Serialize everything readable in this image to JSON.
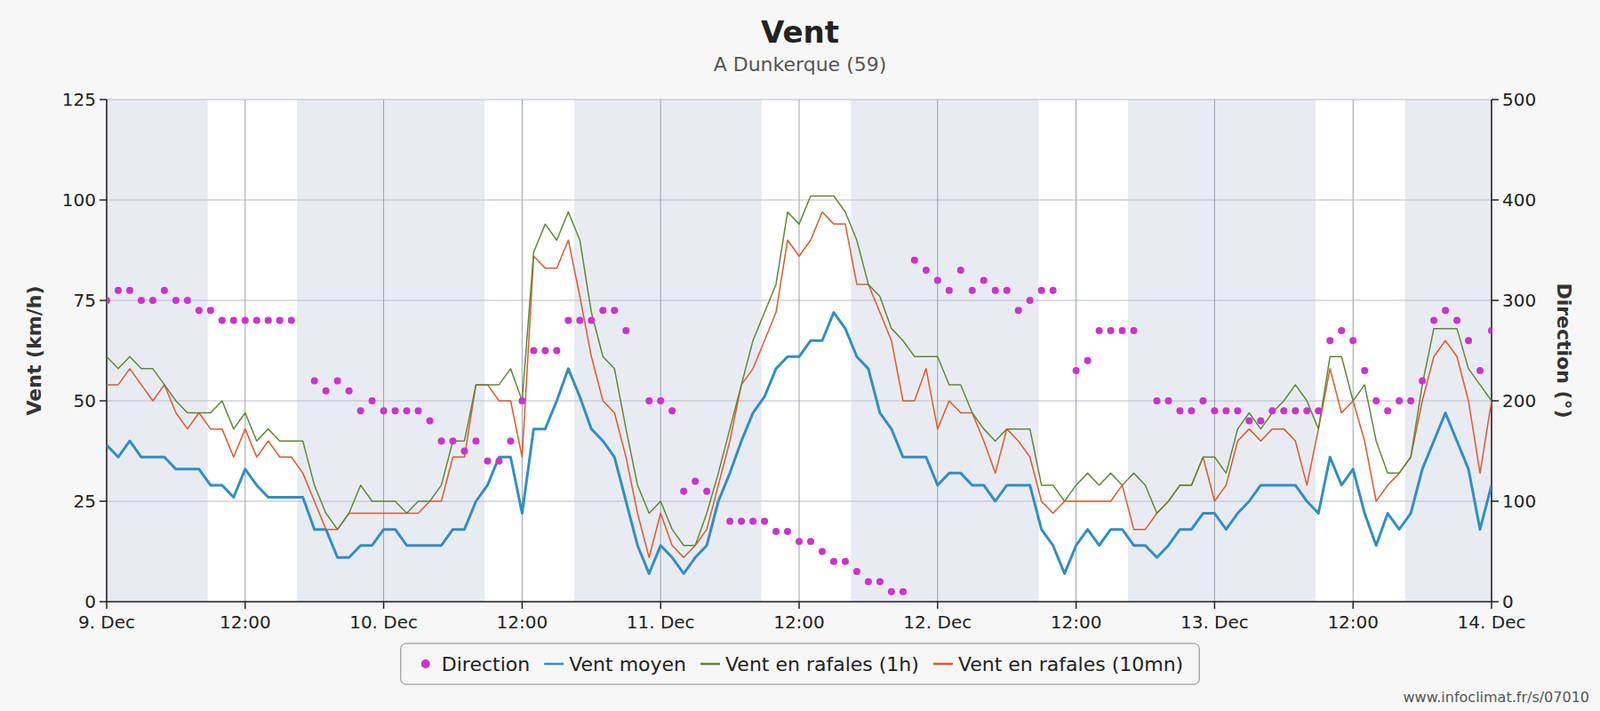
{
  "chart_data": {
    "type": "line",
    "title": "Vent",
    "subtitle": "A Dunkerque (59)",
    "y_label": "Vent (km/h)",
    "y2_label": "Direction (°)",
    "credit": "www.infoclimat.fr/s/07010",
    "xlim": [
      0,
      120
    ],
    "xticks": [
      {
        "value": 0,
        "label": "9. Dec"
      },
      {
        "value": 12,
        "label": "12:00"
      },
      {
        "value": 24,
        "label": "10. Dec"
      },
      {
        "value": 36,
        "label": "12:00"
      },
      {
        "value": 48,
        "label": "11. Dec"
      },
      {
        "value": 60,
        "label": "12:00"
      },
      {
        "value": 72,
        "label": "12. Dec"
      },
      {
        "value": 84,
        "label": "12:00"
      },
      {
        "value": 96,
        "label": "13. Dec"
      },
      {
        "value": 108,
        "label": "12:00"
      },
      {
        "value": 120,
        "label": "14. Dec"
      }
    ],
    "ylim": [
      0,
      125
    ],
    "yticks": [
      0,
      25,
      50,
      75,
      100,
      125
    ],
    "y2lim": [
      0,
      500
    ],
    "y2ticks": [
      0,
      100,
      200,
      300,
      400,
      500
    ],
    "grid": true,
    "legend": "bottom",
    "bands": [
      [
        8.75,
        16.5
      ],
      [
        32.75,
        40.5
      ],
      [
        56.75,
        64.5
      ],
      [
        80.75,
        88.5
      ],
      [
        104.75,
        112.5
      ]
    ],
    "x": [
      0,
      1,
      2,
      3,
      4,
      5,
      6,
      7,
      8,
      9,
      10,
      11,
      12,
      13,
      14,
      15,
      16,
      17,
      18,
      19,
      20,
      21,
      22,
      23,
      24,
      25,
      26,
      27,
      28,
      29,
      30,
      31,
      32,
      33,
      34,
      35,
      36,
      37,
      38,
      39,
      40,
      41,
      42,
      43,
      44,
      45,
      46,
      47,
      48,
      49,
      50,
      51,
      52,
      53,
      54,
      55,
      56,
      57,
      58,
      59,
      60,
      61,
      62,
      63,
      64,
      65,
      66,
      67,
      68,
      69,
      70,
      71,
      72,
      73,
      74,
      75,
      76,
      77,
      78,
      79,
      80,
      81,
      82,
      83,
      84,
      85,
      86,
      87,
      88,
      89,
      90,
      91,
      92,
      93,
      94,
      95,
      96,
      97,
      98,
      99,
      100,
      101,
      102,
      103,
      104,
      105,
      106,
      107,
      108,
      109,
      110,
      111,
      112,
      113,
      114,
      115,
      116,
      117,
      118,
      119,
      120
    ],
    "series": [
      {
        "name": "Direction",
        "type": "scatter",
        "marker": "circle",
        "axis": "y2",
        "color": "#cc33cc",
        "values": [
          300,
          310,
          310,
          300,
          300,
          310,
          300,
          300,
          290,
          290,
          280,
          280,
          280,
          280,
          280,
          280,
          280,
          null,
          220,
          210,
          220,
          210,
          190,
          200,
          190,
          190,
          190,
          190,
          180,
          160,
          160,
          150,
          160,
          140,
          140,
          160,
          200,
          250,
          250,
          250,
          280,
          280,
          280,
          290,
          290,
          270,
          null,
          200,
          200,
          190,
          110,
          120,
          110,
          null,
          80,
          80,
          80,
          80,
          70,
          70,
          60,
          60,
          50,
          40,
          40,
          30,
          20,
          20,
          10,
          10,
          340,
          330,
          320,
          310,
          330,
          310,
          320,
          310,
          310,
          290,
          300,
          310,
          310,
          null,
          230,
          240,
          270,
          270,
          270,
          270,
          null,
          200,
          200,
          190,
          190,
          200,
          190,
          190,
          190,
          180,
          180,
          190,
          190,
          190,
          190,
          190,
          260,
          270,
          260,
          230,
          200,
          190,
          200,
          200,
          220,
          280,
          290,
          280,
          260,
          230,
          270
        ]
      },
      {
        "name": "Vent moyen",
        "type": "line",
        "color": "#2f8fc4",
        "values": [
          39,
          36,
          40,
          36,
          36,
          36,
          33,
          33,
          33,
          29,
          29,
          26,
          33,
          29,
          26,
          26,
          26,
          26,
          18,
          18,
          11,
          11,
          14,
          14,
          18,
          18,
          14,
          14,
          14,
          14,
          18,
          18,
          25,
          29,
          36,
          36,
          22,
          43,
          43,
          50,
          58,
          51,
          43,
          40,
          36,
          25,
          14,
          7,
          14,
          11,
          7,
          11,
          14,
          25,
          32,
          40,
          47,
          51,
          58,
          61,
          61,
          65,
          65,
          72,
          68,
          61,
          58,
          47,
          43,
          36,
          36,
          36,
          29,
          32,
          32,
          29,
          29,
          25,
          29,
          29,
          29,
          18,
          14,
          7,
          14,
          18,
          14,
          18,
          18,
          14,
          14,
          11,
          14,
          18,
          18,
          22,
          22,
          18,
          22,
          25,
          29,
          29,
          29,
          29,
          25,
          22,
          36,
          29,
          33,
          22,
          14,
          22,
          18,
          22,
          33,
          40,
          47,
          40,
          33,
          18,
          29
        ]
      },
      {
        "name": "Vent en rafales (1h)",
        "type": "line",
        "color": "#5d8a35",
        "values": [
          61,
          58,
          61,
          58,
          58,
          54,
          50,
          47,
          47,
          47,
          50,
          43,
          47,
          40,
          43,
          40,
          40,
          40,
          29,
          22,
          18,
          22,
          29,
          25,
          25,
          25,
          22,
          25,
          25,
          29,
          40,
          40,
          54,
          54,
          54,
          58,
          50,
          87,
          94,
          90,
          97,
          90,
          72,
          61,
          58,
          43,
          29,
          22,
          25,
          18,
          14,
          14,
          22,
          32,
          43,
          54,
          65,
          72,
          79,
          97,
          94,
          101,
          101,
          101,
          97,
          90,
          79,
          76,
          68,
          65,
          61,
          61,
          61,
          54,
          54,
          47,
          43,
          40,
          43,
          43,
          43,
          29,
          29,
          25,
          29,
          32,
          29,
          32,
          29,
          32,
          29,
          22,
          25,
          29,
          29,
          36,
          36,
          32,
          43,
          47,
          43,
          47,
          50,
          54,
          50,
          43,
          61,
          61,
          50,
          54,
          40,
          32,
          32,
          36,
          54,
          68,
          68,
          68,
          58,
          54,
          50
        ]
      },
      {
        "name": "Vent en rafales (10mn)",
        "type": "line",
        "color": "#e2582a",
        "values": [
          54,
          54,
          58,
          54,
          50,
          54,
          47,
          43,
          47,
          43,
          43,
          36,
          43,
          36,
          40,
          36,
          36,
          32,
          25,
          18,
          18,
          22,
          22,
          22,
          22,
          22,
          22,
          22,
          25,
          25,
          36,
          36,
          54,
          54,
          50,
          50,
          36,
          86,
          83,
          83,
          90,
          76,
          61,
          50,
          47,
          36,
          22,
          11,
          22,
          14,
          11,
          14,
          18,
          29,
          40,
          54,
          58,
          65,
          72,
          90,
          86,
          90,
          97,
          94,
          94,
          79,
          79,
          72,
          65,
          50,
          50,
          58,
          43,
          50,
          47,
          47,
          40,
          32,
          43,
          40,
          36,
          25,
          22,
          25,
          25,
          25,
          25,
          25,
          29,
          18,
          18,
          22,
          25,
          29,
          29,
          36,
          25,
          29,
          40,
          43,
          40,
          43,
          43,
          40,
          29,
          43,
          58,
          47,
          50,
          40,
          25,
          29,
          32,
          36,
          50,
          61,
          65,
          61,
          50,
          32,
          50
        ]
      }
    ]
  }
}
